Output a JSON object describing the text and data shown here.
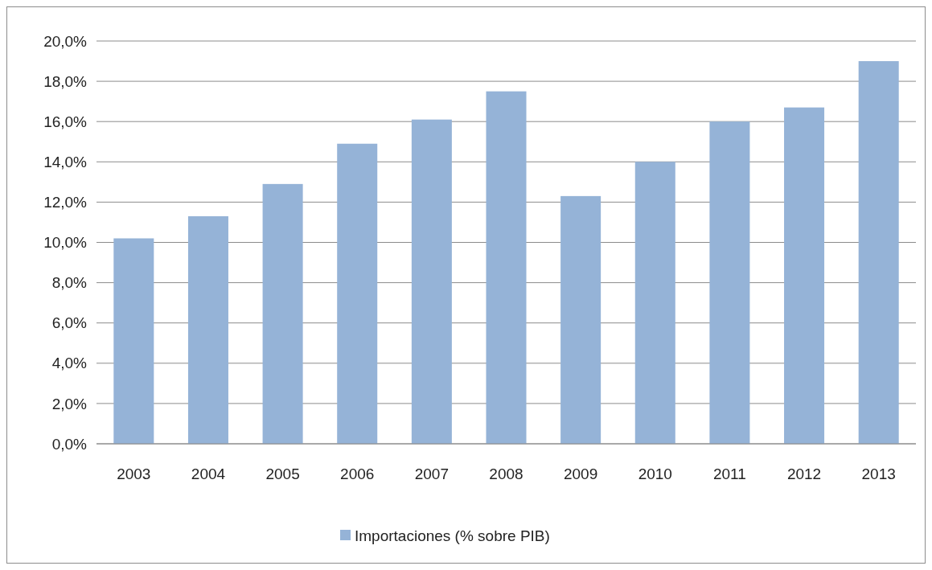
{
  "chart_data": {
    "type": "bar",
    "categories": [
      "2003",
      "2004",
      "2005",
      "2006",
      "2007",
      "2008",
      "2009",
      "2010",
      "2011",
      "2012",
      "2013"
    ],
    "series": [
      {
        "name": "Importaciones (% sobre PIB)",
        "color": "#95b3d7",
        "values": [
          10.2,
          11.3,
          12.9,
          14.9,
          16.1,
          17.5,
          12.3,
          14.0,
          16.0,
          16.7,
          19.0
        ]
      }
    ],
    "ylim": [
      0,
      20
    ],
    "yticks": [
      {
        "value": 0,
        "label": "0,0%"
      },
      {
        "value": 2,
        "label": "2,0%"
      },
      {
        "value": 4,
        "label": "4,0%"
      },
      {
        "value": 6,
        "label": "6,0%"
      },
      {
        "value": 8,
        "label": "8,0%"
      },
      {
        "value": 10,
        "label": "10,0%"
      },
      {
        "value": 12,
        "label": "12,0%"
      },
      {
        "value": 14,
        "label": "14,0%"
      },
      {
        "value": 16,
        "label": "16,0%"
      },
      {
        "value": 18,
        "label": "18,0%"
      },
      {
        "value": 20,
        "label": "20,0%"
      }
    ],
    "grid": "y",
    "legend": "bottom"
  }
}
